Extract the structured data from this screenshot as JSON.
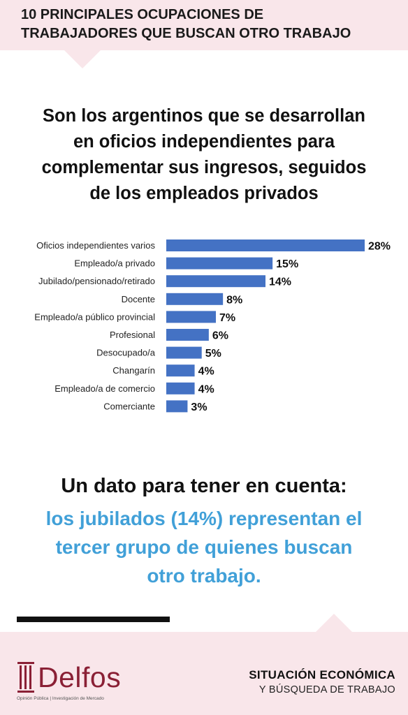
{
  "header": {
    "title_line1": "10 PRINCIPALES OCUPACIONES DE",
    "title_line2": "TRABAJADORES QUE BUSCAN OTRO TRABAJO"
  },
  "subtitle": {
    "line1": "Son los argentinos que se desarrollan",
    "line2": "en oficios independientes para",
    "line3": "complementar sus ingresos, seguidos",
    "line4": "de los empleados privados"
  },
  "chart_data": {
    "type": "bar",
    "orientation": "horizontal",
    "categories": [
      "Oficios independientes varios",
      "Empleado/a privado",
      "Jubilado/pensionado/retirado",
      "Docente",
      "Empleado/a público provincial",
      "Profesional",
      "Desocupado/a",
      "Changarín",
      "Empleado/a de comercio",
      "Comerciante"
    ],
    "values": [
      28,
      15,
      14,
      8,
      7,
      6,
      5,
      4,
      4,
      3
    ],
    "value_labels": [
      "28%",
      "15%",
      "14%",
      "8%",
      "7%",
      "6%",
      "5%",
      "4%",
      "4%",
      "3%"
    ],
    "unit": "%",
    "bar_color": "#4472c4",
    "title": "",
    "xlabel": "",
    "ylabel": "",
    "grid": false,
    "legend": "none"
  },
  "note": {
    "heading": "Un dato para tener en cuenta:",
    "line1": "los jubilados (14%) representan el",
    "line2": "tercer grupo de quienes buscan",
    "line3": "otro trabajo.",
    "highlight_color": "#41a0d8"
  },
  "footer": {
    "logo_name": "Delfos",
    "logo_tagline": "Opinión Pública | Investigación de Mercado",
    "logo_color": "#8a2035",
    "title": "SITUACIÓN ECONÓMICA",
    "subtitle": "Y BÚSQUEDA DE TRABAJO",
    "band_color": "#f9e6ea"
  }
}
